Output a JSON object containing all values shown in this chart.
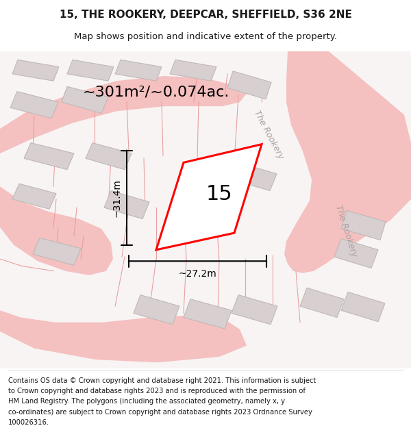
{
  "title": "15, THE ROOKERY, DEEPCAR, SHEFFIELD, S36 2NE",
  "subtitle": "Map shows position and indicative extent of the property.",
  "footer_lines": [
    "Contains OS data © Crown copyright and database right 2021. This information is subject",
    "to Crown copyright and database rights 2023 and is reproduced with the permission of",
    "HM Land Registry. The polygons (including the associated geometry, namely x, y",
    "co-ordinates) are subject to Crown copyright and database rights 2023 Ordnance Survey",
    "100026316."
  ],
  "area_label": "~301m²/~0.074ac.",
  "width_label": "~27.2m",
  "height_label": "~31.4m",
  "plot_number": "15",
  "map_bg": "#f8f4f4",
  "road_color": "#f5c0c0",
  "building_color": "#d8d0d0",
  "building_edge": "#c0b8b8",
  "plot_fill": "white",
  "plot_edge": "red",
  "road_label_color": "#b0a0a0",
  "title_color": "#1a1a1a",
  "footer_color": "#1a1a1a",
  "lot_line_color": "#e8a0a0"
}
